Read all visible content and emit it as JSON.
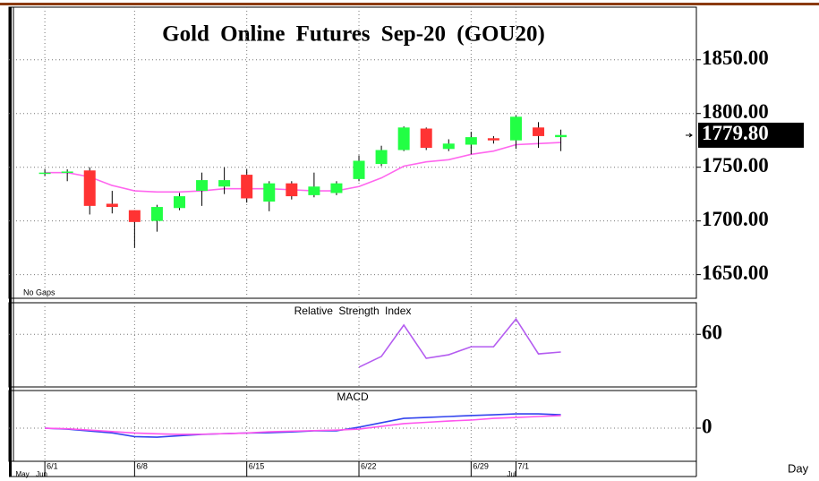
{
  "chart_data": [
    {
      "type": "candlestick",
      "title": "Gold Online Futures Sep-20 (GOU20)",
      "annotation": "No Gaps",
      "x_label": "Day",
      "xlim": [
        -1.6,
        29.04
      ],
      "xticks": [
        {
          "value": 0,
          "label": "6/1"
        },
        {
          "value": 4,
          "label": "6/8"
        },
        {
          "value": 9,
          "label": "6/15"
        },
        {
          "value": 14,
          "label": "6/22"
        },
        {
          "value": 19,
          "label": "6/29"
        },
        {
          "value": 21,
          "label": "7/1"
        }
      ],
      "month_ticks": [
        {
          "value": -0.9,
          "label": "May"
        },
        {
          "value": 0,
          "label": "Jun"
        },
        {
          "value": 21,
          "label": "Jul"
        }
      ],
      "ylim": [
        1628,
        1899
      ],
      "yticks": [
        {
          "value": 1650,
          "label": "1650.00"
        },
        {
          "value": 1700,
          "label": "1700.00"
        },
        {
          "value": 1750,
          "label": "1750.00"
        },
        {
          "value": 1800,
          "label": "1800.00"
        },
        {
          "value": 1850,
          "label": "1850.00"
        }
      ],
      "grid": true,
      "up_color": "#22ff44",
      "down_color": "#ff3333",
      "open": [
        1745,
        1745,
        1747,
        1716,
        1710,
        1700,
        1712,
        1728,
        1732,
        1743,
        1718,
        1735,
        1724,
        1726,
        1739,
        1753,
        1766,
        1786,
        1767,
        1771,
        1777,
        1775,
        1787,
        1778
      ],
      "high": [
        1748,
        1748,
        1750,
        1728,
        1710,
        1715,
        1726,
        1745,
        1750,
        1748,
        1737,
        1737,
        1745,
        1737,
        1761,
        1770,
        1788,
        1787,
        1776,
        1783,
        1779,
        1798,
        1792,
        1785
      ],
      "low": [
        1742,
        1737,
        1706,
        1707,
        1675,
        1690,
        1710,
        1714,
        1725,
        1717,
        1709,
        1720,
        1722,
        1724,
        1737,
        1751,
        1765,
        1766,
        1765,
        1762,
        1772,
        1767,
        1768,
        1765
      ],
      "close": [
        1745,
        1746,
        1714,
        1713,
        1699,
        1713,
        1723,
        1738,
        1738,
        1721,
        1735,
        1723,
        1732,
        1735,
        1756,
        1766,
        1787,
        1768,
        1772,
        1778,
        1775,
        1797,
        1779,
        1780
      ],
      "overlay": {
        "color": "#ff66ee",
        "values": [
          1745,
          1745,
          1741,
          1733,
          1728,
          1727,
          1727,
          1728,
          1730,
          1730,
          1730,
          1729,
          1728,
          1728,
          1732,
          1740,
          1751,
          1755,
          1757,
          1762,
          1765,
          1771,
          1772,
          1773
        ]
      },
      "last_price": {
        "value": 1779.8,
        "label": "1779.80"
      }
    },
    {
      "type": "line",
      "title": "Relative Strength Index",
      "ylim": [
        35,
        75
      ],
      "yticks": [
        60
      ],
      "grid": true,
      "color": "#b45cf0",
      "values": [
        null,
        null,
        null,
        null,
        null,
        null,
        null,
        null,
        null,
        null,
        null,
        null,
        null,
        null,
        44.4,
        49.5,
        64.4,
        48.6,
        50.3,
        54.1,
        54.1,
        67.3,
        50.7,
        51.6
      ]
    },
    {
      "type": "line",
      "title": "MACD",
      "ylim": [
        -17.6,
        20
      ],
      "yticks": [
        0
      ],
      "grid": true,
      "series": [
        {
          "color": "#3344ee",
          "values": [
            0,
            -0.5,
            -1.5,
            -2.5,
            -4.5,
            -4.8,
            -4.0,
            -3.3,
            -2.9,
            -2.6,
            -2.4,
            -2.0,
            -1.4,
            -1.4,
            0.5,
            2.9,
            5.2,
            5.7,
            6.2,
            6.7,
            7.1,
            7.6,
            7.6,
            7.1
          ]
        },
        {
          "color": "#ff55ee",
          "values": [
            0,
            -0.3,
            -1.0,
            -1.8,
            -2.6,
            -3.0,
            -3.3,
            -3.2,
            -2.9,
            -2.6,
            -1.9,
            -1.6,
            -1.3,
            -1.0,
            -0.5,
            1.0,
            2.4,
            3.1,
            3.8,
            4.3,
            5.2,
            5.7,
            6.2,
            6.7
          ]
        }
      ]
    }
  ]
}
